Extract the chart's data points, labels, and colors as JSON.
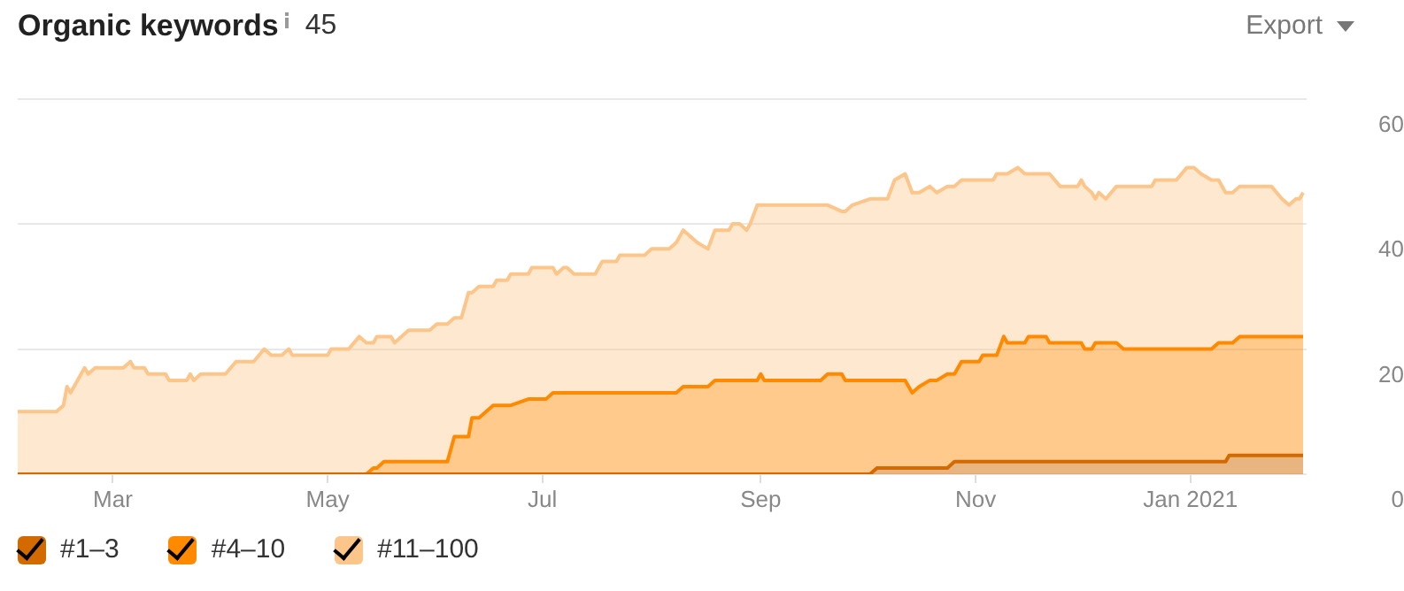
{
  "chart_data": {
    "type": "area",
    "title": "Organic keywords",
    "subtitle": "45",
    "annotations": [
      "Export"
    ],
    "stacked": true,
    "grid": "y",
    "legend": "bottom left",
    "marker": "none",
    "line_style": "solid",
    "xlim": [
      "2020-02-03",
      "2021-02-03"
    ],
    "xticks": [
      {
        "value": "2020-03-01",
        "label": "Mar"
      },
      {
        "value": "2020-05-01",
        "label": "May"
      },
      {
        "value": "2020-07-01",
        "label": "Jul"
      },
      {
        "value": "2020-09-01",
        "label": "Sep"
      },
      {
        "value": "2020-11-01",
        "label": "Nov"
      },
      {
        "value": "2021-01-01",
        "label": "Jan 2021"
      }
    ],
    "ylim": [
      0,
      60
    ],
    "yticks": [
      0,
      20,
      40,
      60
    ],
    "x": [
      "2020-02-03",
      "2020-02-14",
      "2020-02-16",
      "2020-02-17",
      "2020-02-18",
      "2020-02-22",
      "2020-02-23",
      "2020-02-25",
      "2020-03-04",
      "2020-03-06",
      "2020-03-07",
      "2020-03-10",
      "2020-03-11",
      "2020-03-16",
      "2020-03-17",
      "2020-03-22",
      "2020-03-23",
      "2020-03-24",
      "2020-03-26",
      "2020-04-02",
      "2020-04-05",
      "2020-04-10",
      "2020-04-13",
      "2020-04-15",
      "2020-04-18",
      "2020-04-20",
      "2020-04-21",
      "2020-05-01",
      "2020-05-02",
      "2020-05-07",
      "2020-05-10",
      "2020-05-12",
      "2020-05-14",
      "2020-05-15",
      "2020-05-17",
      "2020-05-19",
      "2020-05-20",
      "2020-05-24",
      "2020-05-30",
      "2020-06-01",
      "2020-06-04",
      "2020-06-06",
      "2020-06-08",
      "2020-06-10",
      "2020-06-11",
      "2020-06-13",
      "2020-06-17",
      "2020-06-18",
      "2020-06-21",
      "2020-06-22",
      "2020-06-27",
      "2020-06-28",
      "2020-07-02",
      "2020-07-04",
      "2020-07-05",
      "2020-07-07",
      "2020-07-08",
      "2020-07-10",
      "2020-07-16",
      "2020-07-18",
      "2020-07-22",
      "2020-07-23",
      "2020-07-30",
      "2020-08-01",
      "2020-08-06",
      "2020-08-08",
      "2020-08-10",
      "2020-08-14",
      "2020-08-17",
      "2020-08-19",
      "2020-08-23",
      "2020-08-24",
      "2020-08-26",
      "2020-08-28",
      "2020-08-29",
      "2020-08-31",
      "2020-09-01",
      "2020-09-02",
      "2020-09-18",
      "2020-09-20",
      "2020-09-24",
      "2020-09-25",
      "2020-09-27",
      "2020-10-02",
      "2020-10-04",
      "2020-10-07",
      "2020-10-09",
      "2020-10-12",
      "2020-10-14",
      "2020-10-16",
      "2020-10-19",
      "2020-10-21",
      "2020-10-24",
      "2020-10-26",
      "2020-10-28",
      "2020-11-02",
      "2020-11-03",
      "2020-11-06",
      "2020-11-07",
      "2020-11-09",
      "2020-11-10",
      "2020-11-13",
      "2020-11-15",
      "2020-11-16",
      "2020-11-21",
      "2020-11-22",
      "2020-11-25",
      "2020-11-30",
      "2020-12-01",
      "2020-12-02",
      "2020-12-04",
      "2020-12-05",
      "2020-12-06",
      "2020-12-08",
      "2020-12-11",
      "2020-12-13",
      "2020-12-21",
      "2020-12-22",
      "2020-12-28",
      "2020-12-31",
      "2021-01-02",
      "2021-01-04",
      "2021-01-07",
      "2021-01-09",
      "2021-01-11",
      "2021-01-12",
      "2021-01-13",
      "2021-01-15",
      "2021-01-24",
      "2021-01-27",
      "2021-01-29",
      "2021-01-31",
      "2021-02-01",
      "2021-02-02"
    ],
    "series": [
      {
        "name": "#1–3",
        "color": "#d26a00",
        "values": [
          0,
          0,
          0,
          0,
          0,
          0,
          0,
          0,
          0,
          0,
          0,
          0,
          0,
          0,
          0,
          0,
          0,
          0,
          0,
          0,
          0,
          0,
          0,
          0,
          0,
          0,
          0,
          0,
          0,
          0,
          0,
          0,
          0,
          0,
          0,
          0,
          0,
          0,
          0,
          0,
          0,
          0,
          0,
          0,
          0,
          0,
          0,
          0,
          0,
          0,
          0,
          0,
          0,
          0,
          0,
          0,
          0,
          0,
          0,
          0,
          0,
          0,
          0,
          0,
          0,
          0,
          0,
          0,
          0,
          0,
          0,
          0,
          0,
          0,
          0,
          0,
          0,
          0,
          0,
          0,
          0,
          0,
          0,
          0,
          1,
          1,
          1,
          1,
          1,
          1,
          1,
          1,
          1,
          2,
          2,
          2,
          2,
          2,
          2,
          2,
          2,
          2,
          2,
          2,
          2,
          2,
          2,
          2,
          2,
          2,
          2,
          2,
          2,
          2,
          2,
          2,
          2,
          2,
          2,
          2,
          2,
          2,
          2,
          2,
          2,
          3,
          3,
          3,
          3,
          3,
          3,
          3,
          3,
          3
        ]
      },
      {
        "name": "#4–10",
        "color": "#ff8a00",
        "values": [
          0,
          0,
          0,
          0,
          0,
          0,
          0,
          0,
          0,
          0,
          0,
          0,
          0,
          0,
          0,
          0,
          0,
          0,
          0,
          0,
          0,
          0,
          0,
          0,
          0,
          0,
          0,
          0,
          0,
          0,
          0,
          0,
          1,
          1,
          2,
          2,
          2,
          2,
          2,
          2,
          2,
          6,
          6,
          6,
          9,
          9,
          11,
          11,
          11,
          11,
          12,
          12,
          12,
          13,
          13,
          13,
          13,
          13,
          13,
          13,
          13,
          13,
          13,
          13,
          13,
          13,
          14,
          14,
          14,
          15,
          15,
          15,
          15,
          15,
          15,
          15,
          16,
          15,
          15,
          16,
          16,
          15,
          15,
          15,
          14,
          14,
          14,
          14,
          12,
          13,
          14,
          14,
          15,
          14,
          16,
          16,
          17,
          17,
          17,
          20,
          19,
          19,
          19,
          20,
          20,
          19,
          19,
          19,
          19,
          18,
          18,
          19,
          19,
          19,
          19,
          18,
          18,
          18,
          18,
          18,
          18,
          18,
          18,
          19,
          19,
          18,
          18,
          19,
          19,
          19,
          19,
          19,
          19,
          19
        ]
      },
      {
        "name": "#11–100",
        "color": "#fcc58a",
        "values": [
          10,
          10,
          11,
          14,
          13,
          17,
          16,
          17,
          17,
          18,
          17,
          17,
          16,
          16,
          15,
          15,
          16,
          15,
          16,
          16,
          18,
          18,
          20,
          19,
          19,
          20,
          19,
          19,
          20,
          20,
          22,
          21,
          20,
          21,
          20,
          20,
          19,
          21,
          21,
          22,
          22,
          19,
          19,
          23,
          20,
          21,
          19,
          20,
          20,
          21,
          20,
          21,
          21,
          20,
          19,
          20,
          20,
          19,
          19,
          21,
          21,
          22,
          22,
          23,
          23,
          24,
          25,
          23,
          22,
          24,
          24,
          25,
          25,
          24,
          25,
          28,
          27,
          28,
          28,
          27,
          26,
          27,
          28,
          29,
          29,
          29,
          32,
          33,
          32,
          31,
          31,
          30,
          30,
          30,
          29,
          29,
          28,
          28,
          29,
          26,
          27,
          28,
          27,
          26,
          26,
          27,
          25,
          25,
          26,
          26,
          25,
          23,
          24,
          23,
          25,
          26,
          26,
          27,
          27,
          29,
          29,
          28,
          27,
          26,
          24,
          24,
          24,
          24,
          24,
          22,
          21,
          22,
          22,
          23
        ]
      }
    ]
  }
}
